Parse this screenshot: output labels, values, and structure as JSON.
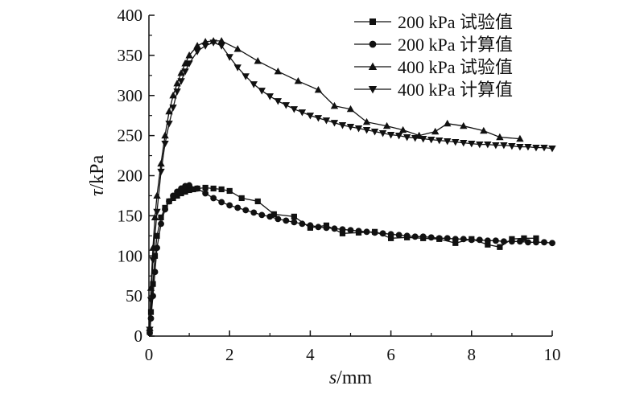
{
  "chart_data": {
    "type": "line",
    "title": "",
    "xlabel": {
      "italic": "s",
      "rest": "/mm"
    },
    "ylabel": {
      "italic": "τ",
      "rest": "/kPa"
    },
    "xlim": [
      0,
      10
    ],
    "ylim": [
      0,
      400
    ],
    "xticks": [
      0,
      2,
      4,
      6,
      8,
      10
    ],
    "yticks": [
      0,
      50,
      100,
      150,
      200,
      250,
      300,
      350,
      400
    ],
    "grid": false,
    "legend_position": "top-right",
    "series": [
      {
        "name": "200 kPa 试验值",
        "marker": "square",
        "x": [
          0.02,
          0.05,
          0.1,
          0.15,
          0.2,
          0.3,
          0.4,
          0.5,
          0.6,
          0.7,
          0.8,
          0.9,
          1.0,
          1.1,
          1.2,
          1.4,
          1.6,
          1.8,
          2.0,
          2.3,
          2.7,
          3.1,
          3.6,
          4.0,
          4.4,
          4.8,
          5.2,
          5.6,
          6.0,
          6.4,
          6.8,
          7.2,
          7.6,
          8.0,
          8.4,
          8.7,
          9.0,
          9.3,
          9.6
        ],
        "y": [
          5,
          30,
          65,
          100,
          125,
          148,
          160,
          168,
          172,
          175,
          178,
          180,
          182,
          183,
          184,
          185,
          184,
          183,
          181,
          172,
          168,
          152,
          149,
          135,
          138,
          128,
          129,
          130,
          122,
          123,
          122,
          121,
          116,
          121,
          114,
          111,
          121,
          122,
          122
        ]
      },
      {
        "name": "200 kPa 计算值",
        "marker": "circle",
        "x": [
          0.02,
          0.05,
          0.1,
          0.15,
          0.2,
          0.3,
          0.4,
          0.5,
          0.6,
          0.7,
          0.8,
          0.9,
          1.0,
          1.2,
          1.4,
          1.6,
          1.8,
          2.0,
          2.2,
          2.4,
          2.6,
          2.8,
          3.0,
          3.2,
          3.4,
          3.6,
          3.8,
          4.0,
          4.2,
          4.4,
          4.6,
          4.8,
          5.0,
          5.2,
          5.4,
          5.6,
          5.8,
          6.0,
          6.2,
          6.4,
          6.6,
          6.8,
          7.0,
          7.2,
          7.4,
          7.6,
          7.8,
          8.0,
          8.2,
          8.4,
          8.6,
          8.8,
          9.0,
          9.2,
          9.4,
          9.6,
          9.8,
          10.0
        ],
        "y": [
          4,
          22,
          50,
          80,
          110,
          140,
          158,
          168,
          175,
          180,
          184,
          187,
          188,
          184,
          178,
          172,
          167,
          163,
          160,
          157,
          154,
          151,
          149,
          146,
          144,
          142,
          140,
          138,
          136,
          135,
          134,
          133,
          132,
          131,
          130,
          129,
          128,
          127,
          126,
          125,
          124,
          124,
          123,
          122,
          122,
          121,
          121,
          120,
          120,
          119,
          119,
          118,
          118,
          118,
          117,
          117,
          117,
          116
        ]
      },
      {
        "name": "400 kPa 试验值",
        "marker": "triangle-up",
        "x": [
          0.02,
          0.05,
          0.1,
          0.15,
          0.2,
          0.3,
          0.4,
          0.5,
          0.6,
          0.7,
          0.8,
          0.9,
          1.0,
          1.2,
          1.4,
          1.6,
          1.8,
          2.2,
          2.7,
          3.2,
          3.7,
          4.2,
          4.6,
          5.0,
          5.4,
          5.9,
          6.3,
          6.7,
          7.1,
          7.4,
          7.8,
          8.3,
          8.7,
          9.2
        ],
        "y": [
          10,
          60,
          110,
          148,
          175,
          215,
          250,
          280,
          300,
          315,
          328,
          340,
          350,
          362,
          367,
          368,
          368,
          358,
          343,
          330,
          318,
          307,
          287,
          283,
          267,
          262,
          257,
          250,
          255,
          265,
          262,
          256,
          248,
          246
        ]
      },
      {
        "name": "400 kPa 计算值",
        "marker": "triangle-down",
        "x": [
          0.02,
          0.05,
          0.1,
          0.2,
          0.3,
          0.4,
          0.5,
          0.6,
          0.7,
          0.8,
          0.9,
          1.0,
          1.2,
          1.4,
          1.6,
          1.8,
          2.0,
          2.2,
          2.4,
          2.6,
          2.8,
          3.0,
          3.2,
          3.4,
          3.6,
          3.8,
          4.0,
          4.2,
          4.4,
          4.6,
          4.8,
          5.0,
          5.2,
          5.4,
          5.6,
          5.8,
          6.0,
          6.2,
          6.4,
          6.6,
          6.8,
          7.0,
          7.2,
          7.4,
          7.6,
          7.8,
          8.0,
          8.2,
          8.4,
          8.6,
          8.8,
          9.0,
          9.2,
          9.4,
          9.6,
          9.8,
          10.0
        ],
        "y": [
          8,
          45,
          95,
          155,
          205,
          240,
          265,
          285,
          305,
          318,
          330,
          340,
          355,
          362,
          366,
          362,
          348,
          335,
          324,
          314,
          306,
          299,
          293,
          288,
          283,
          279,
          275,
          272,
          269,
          266,
          263,
          261,
          259,
          257,
          255,
          253,
          251,
          250,
          248,
          247,
          246,
          245,
          244,
          243,
          242,
          241,
          240,
          239,
          239,
          238,
          238,
          237,
          236,
          236,
          235,
          235,
          234
        ]
      }
    ]
  }
}
